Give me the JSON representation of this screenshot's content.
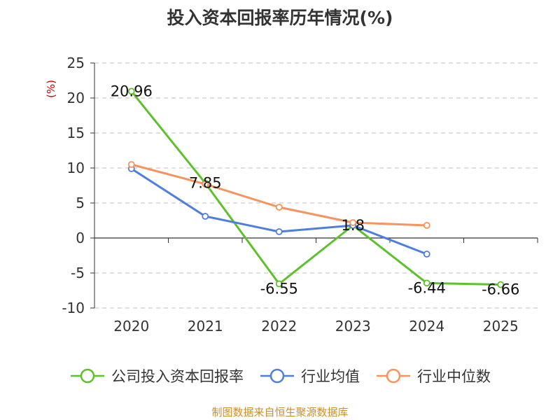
{
  "title": "投入资本回报率历年情况(%)",
  "source": "制图数据来自恒生聚源数据库",
  "colors": {
    "company": "#5dc12b",
    "industry_avg": "#4f7fdc",
    "industry_median": "#f7935d",
    "ylabel": "#cc0000"
  },
  "chart_data": {
    "type": "line",
    "title": "投入资本回报率历年情况(%)",
    "ylabel": "(%)",
    "xlabel": "",
    "categories": [
      "2020",
      "2021",
      "2022",
      "2023",
      "2024",
      "2025"
    ],
    "ylim": [
      -10,
      25
    ],
    "yticks": [
      25,
      20,
      15,
      10,
      5,
      0,
      -5,
      -10
    ],
    "grid": true,
    "legend_position": "bottom",
    "series": [
      {
        "name": "公司投入资本回报率",
        "values": [
          20.96,
          7.85,
          -6.55,
          1.8,
          -6.44,
          -6.66
        ],
        "labels": [
          "20.96",
          "7.85",
          "-6.55",
          "1.8",
          "-6.44",
          "-6.66"
        ]
      },
      {
        "name": "行业均值",
        "values": [
          9.9,
          3.1,
          0.9,
          1.8,
          -2.3,
          null
        ]
      },
      {
        "name": "行业中位数",
        "values": [
          10.5,
          7.7,
          4.4,
          2.2,
          1.8,
          null
        ]
      }
    ]
  }
}
